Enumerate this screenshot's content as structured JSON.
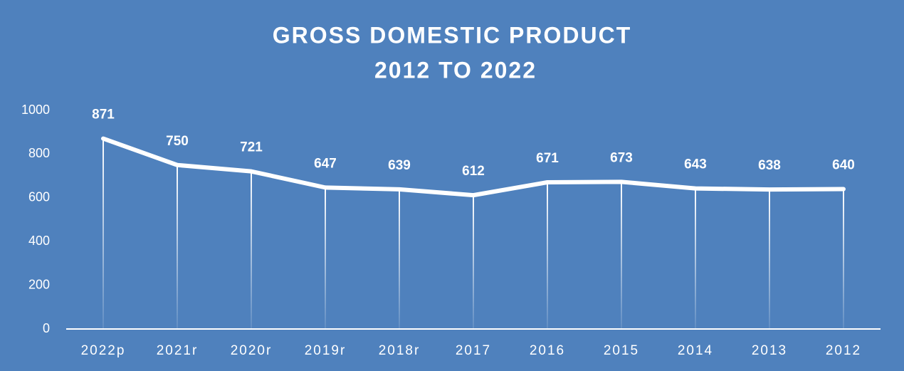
{
  "chart_data": {
    "type": "line",
    "title": [
      "GROSS DOMESTIC PRODUCT",
      "2012 TO 2022"
    ],
    "categories": [
      "2022p",
      "2021r",
      "2020r",
      "2019r",
      "2018r",
      "2017",
      "2016",
      "2015",
      "2014",
      "2013",
      "2012"
    ],
    "values": [
      871,
      750,
      721,
      647,
      639,
      612,
      671,
      673,
      643,
      638,
      640
    ],
    "color": "#ffffff",
    "background": "#4f81bd",
    "ylim": [
      0,
      1000
    ],
    "yticks": [
      0,
      200,
      400,
      600,
      800,
      1000
    ],
    "grid": false,
    "drop_lines": true,
    "data_labels": true
  }
}
